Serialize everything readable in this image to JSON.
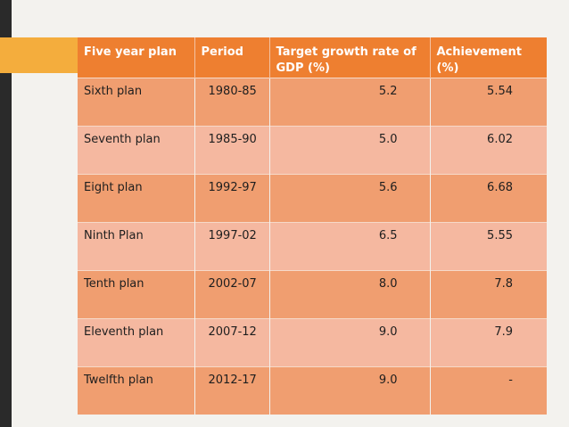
{
  "colors": {
    "header": "#ee7f30",
    "row_odd": "#f09e70",
    "row_even": "#f5b8a0",
    "accent": "#f4ad3d",
    "left_bar": "#2a2a2a"
  },
  "table": {
    "headers": {
      "plan": "Five year plan",
      "period": "Period",
      "target": "Target growth rate of GDP (%)",
      "achievement": "Achievement (%)"
    },
    "rows": [
      {
        "plan": "Sixth plan",
        "period": "1980-85",
        "target": "5.2",
        "achievement": "5.54"
      },
      {
        "plan": "Seventh plan",
        "period": "1985-90",
        "target": "5.0",
        "achievement": "6.02"
      },
      {
        "plan": "Eight plan",
        "period": "1992-97",
        "target": "5.6",
        "achievement": "6.68"
      },
      {
        "plan": "Ninth Plan",
        "period": "1997-02",
        "target": "6.5",
        "achievement": "5.55"
      },
      {
        "plan": "Tenth plan",
        "period": "2002-07",
        "target": "8.0",
        "achievement": "7.8"
      },
      {
        "plan": "Eleventh plan",
        "period": "2007-12",
        "target": "9.0",
        "achievement": "7.9"
      },
      {
        "plan": "Twelfth plan",
        "period": "2012-17",
        "target": "9.0",
        "achievement": "-"
      }
    ]
  }
}
